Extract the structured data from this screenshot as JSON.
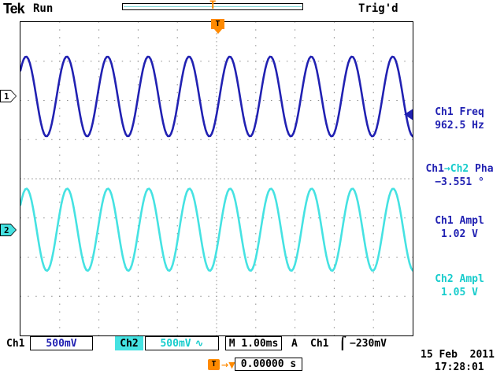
{
  "colors": {
    "ch1": "#2121b2",
    "ch2_wave": "#45e2e2",
    "ch2_text": "#17cccc",
    "orange": "#ff8a00",
    "grid": "#8c8c8c"
  },
  "header": {
    "logo": "Tek",
    "acq_status": "Run",
    "trig_status": "Trig'd",
    "trig_marker": "T"
  },
  "channel_tags": {
    "ch1": "1",
    "ch2": "2"
  },
  "trigger_flag": "T",
  "measurements": {
    "freq": {
      "label": "Ch1 Freq",
      "value": "962.5 Hz"
    },
    "phase": {
      "label_src": "Ch1",
      "label_arrow_dst": "→Ch2",
      "label_kind": " Pha",
      "value": "−3.551 °"
    },
    "ampl1": {
      "label": "Ch1 Ampl",
      "value": "1.02 V"
    },
    "ampl2": {
      "label": "Ch2 Ampl",
      "value": "1.05 V"
    }
  },
  "status_bar": {
    "ch1_label": "Ch1",
    "ch1_scale": "500mV",
    "ch2_label": "Ch2",
    "ch2_scale": "500mV",
    "ch2_coupling": "∿",
    "timebase": "M 1.00ms",
    "trig_a": "A",
    "trig_source": "Ch1",
    "trig_slope": "⌠",
    "trig_level": "−230mV"
  },
  "footer": {
    "date": "15 Feb  2011",
    "time": "17:28:01",
    "trig_pos_label": "T",
    "trig_pos_arrow": "→▼",
    "trig_pos_value": "0.00000 s"
  },
  "chart_data": {
    "type": "line",
    "title": "Dual-channel oscilloscope sine waves",
    "x_axis": {
      "units": "s",
      "seconds_per_div": 0.001,
      "divisions": 10,
      "range": [
        -0.005,
        0.005
      ]
    },
    "y_axis": {
      "divisions": 8
    },
    "series": [
      {
        "name": "Ch1",
        "shape": "sine",
        "frequency_hz": 962.5,
        "amplitude_vpp": 1.02,
        "phase_deg": 0,
        "volts_per_div": 0.5,
        "center_div_from_top": 1.9,
        "color_key": "ch1"
      },
      {
        "name": "Ch2",
        "shape": "sine",
        "frequency_hz": 962.5,
        "amplitude_vpp": 1.05,
        "phase_deg": -3.551,
        "volts_per_div": 0.5,
        "center_div_from_top": 5.3,
        "color_key": "ch2_wave"
      }
    ],
    "trigger": {
      "source": "Ch1",
      "level_v": -0.23,
      "slope": "rising",
      "position_s": 0.0
    }
  }
}
